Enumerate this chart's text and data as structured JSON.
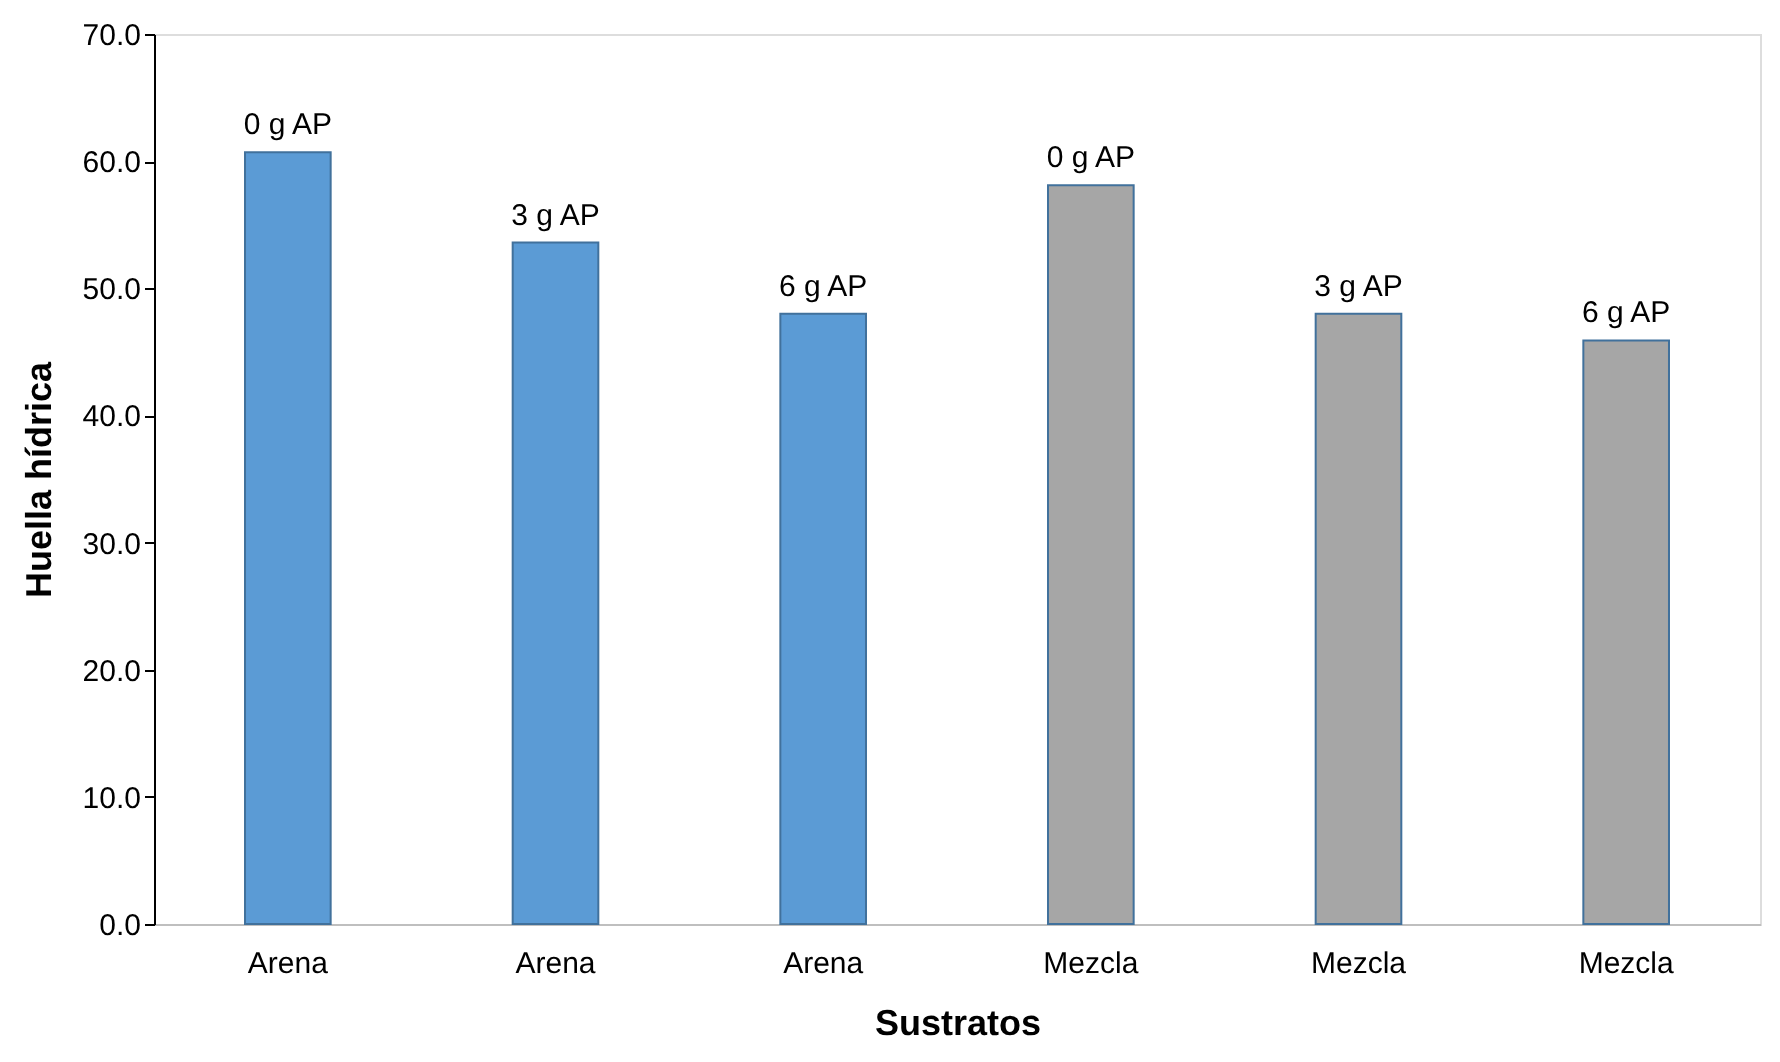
{
  "chart_data": {
    "type": "bar",
    "xlabel": "Sustratos",
    "ylabel": "Huella hídrica",
    "categories": [
      "Arena",
      "Arena",
      "Arena",
      "Mezcla",
      "Mezcla",
      "Mezcla"
    ],
    "values": [
      60.7,
      53.6,
      48.0,
      58.1,
      48.0,
      45.9
    ],
    "colors": [
      "#5b9bd5",
      "#5b9bd5",
      "#5b9bd5",
      "#a6a6a6",
      "#a6a6a6",
      "#a6a6a6"
    ],
    "annotations": [
      "0 g AP",
      "3 g AP",
      "6 g AP",
      "0 g AP",
      "3 g AP",
      "6 g AP"
    ],
    "ylim": [
      0,
      70
    ],
    "yticks": [
      {
        "value": 0,
        "label": "0.0"
      },
      {
        "value": 10,
        "label": "10.0"
      },
      {
        "value": 20,
        "label": "20.0"
      },
      {
        "value": 30,
        "label": "30.0"
      },
      {
        "value": 40,
        "label": "40.0"
      },
      {
        "value": 50,
        "label": "50.0"
      },
      {
        "value": 60,
        "label": "60.0"
      },
      {
        "value": 70,
        "label": "70.0"
      }
    ],
    "grid": false
  }
}
